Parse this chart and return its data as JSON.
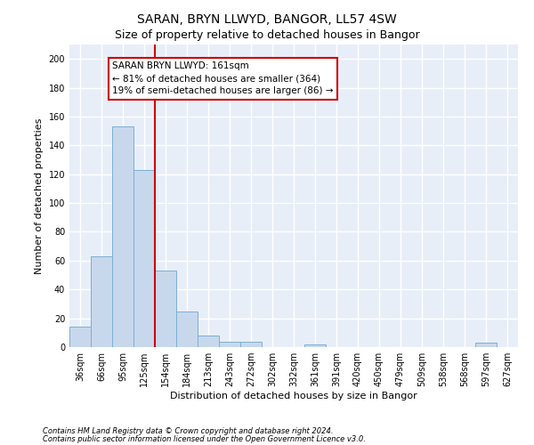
{
  "title": "SARAN, BRYN LLWYD, BANGOR, LL57 4SW",
  "subtitle": "Size of property relative to detached houses in Bangor",
  "xlabel": "Distribution of detached houses by size in Bangor",
  "ylabel": "Number of detached properties",
  "categories": [
    "36sqm",
    "66sqm",
    "95sqm",
    "125sqm",
    "154sqm",
    "184sqm",
    "213sqm",
    "243sqm",
    "272sqm",
    "302sqm",
    "332sqm",
    "361sqm",
    "391sqm",
    "420sqm",
    "450sqm",
    "479sqm",
    "509sqm",
    "538sqm",
    "568sqm",
    "597sqm",
    "627sqm"
  ],
  "values": [
    14,
    63,
    153,
    123,
    53,
    25,
    8,
    4,
    4,
    0,
    0,
    2,
    0,
    0,
    0,
    0,
    0,
    0,
    0,
    3,
    0
  ],
  "bar_color": "#c8d8ec",
  "bar_edge_color": "#7aafd4",
  "vline_color": "#cc0000",
  "annotation_text": "SARAN BRYN LLWYD: 161sqm\n← 81% of detached houses are smaller (364)\n19% of semi-detached houses are larger (86) →",
  "annotation_box_color": "#ffffff",
  "annotation_box_edge_color": "#cc0000",
  "ylim": [
    0,
    210
  ],
  "yticks": [
    0,
    20,
    40,
    60,
    80,
    100,
    120,
    140,
    160,
    180,
    200
  ],
  "footer1": "Contains HM Land Registry data © Crown copyright and database right 2024.",
  "footer2": "Contains public sector information licensed under the Open Government Licence v3.0.",
  "plot_bg_color": "#e8eef8",
  "fig_bg_color": "#ffffff",
  "grid_color": "#ffffff",
  "title_fontsize": 10,
  "subtitle_fontsize": 9,
  "tick_fontsize": 7,
  "ylabel_fontsize": 8,
  "xlabel_fontsize": 8,
  "annotation_fontsize": 7.5,
  "footer_fontsize": 6
}
